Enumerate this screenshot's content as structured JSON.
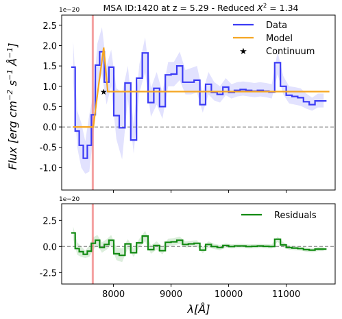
{
  "chart_data": [
    {
      "type": "line",
      "title": "MSA ID:1420 at z = 5.29 - Reduced X² = 1.34",
      "title_parts": {
        "main": "MSA ID:1420 at z = 5.29 - Reduced ",
        "chi": "X",
        "sup": "2",
        "tail": " = 1.34"
      },
      "offset_text": "1e−20",
      "ylabel": "Flux [erg cm⁻² s⁻¹ Å⁻¹]",
      "ylabel_parts": {
        "a": "Flux [",
        "b": "erg cm",
        "c": "−2",
        "d": " s",
        "e": "−1",
        "f": " Å",
        "g": "−1",
        "h": "]"
      },
      "xlabel": "",
      "xlim": [
        7100,
        11850
      ],
      "ylim": [
        -1.55,
        2.75
      ],
      "y_ticks": [
        "-1.0",
        "-0.5",
        "0.0",
        "0.5",
        "1.0",
        "1.5",
        "2.0",
        "2.5"
      ],
      "y_tick_values": [
        -1.0,
        -0.5,
        0.0,
        0.5,
        1.0,
        1.5,
        2.0,
        2.5
      ],
      "grid": false,
      "legend_position": "top-right",
      "legend": [
        "Data",
        "Model",
        "Continuum"
      ],
      "zero_line": 0.0,
      "vertical_line_x": 7640,
      "series": [
        {
          "name": "Data",
          "color": "#3b3bf5",
          "x": [
            7300,
            7370,
            7440,
            7510,
            7580,
            7650,
            7720,
            7800,
            7880,
            7960,
            8050,
            8150,
            8250,
            8350,
            8450,
            8550,
            8650,
            8750,
            8850,
            8950,
            9050,
            9150,
            9250,
            9350,
            9450,
            9550,
            9650,
            9750,
            9850,
            9950,
            10050,
            10150,
            10250,
            10350,
            10450,
            10550,
            10650,
            10750,
            10850,
            10950,
            11050,
            11150,
            11250,
            11350,
            11450,
            11550,
            11650
          ],
          "y": [
            1.47,
            -0.1,
            -0.45,
            -0.77,
            -0.45,
            0.3,
            1.52,
            1.85,
            1.1,
            1.47,
            0.28,
            -0.02,
            1.08,
            -0.32,
            1.2,
            1.82,
            0.6,
            0.95,
            0.5,
            1.28,
            1.3,
            1.5,
            1.1,
            1.1,
            1.15,
            0.55,
            1.05,
            0.85,
            0.8,
            0.98,
            0.85,
            0.9,
            0.92,
            0.9,
            0.88,
            0.9,
            0.88,
            0.86,
            1.58,
            1.0,
            0.78,
            0.75,
            0.72,
            0.62,
            0.55,
            0.64,
            0.64
          ],
          "err_lower": [
            1.1,
            -0.5,
            -1.0,
            -1.15,
            -1.1,
            -0.2,
            1.0,
            1.3,
            0.55,
            1.0,
            -0.3,
            -0.8,
            0.7,
            -0.65,
            0.85,
            1.35,
            0.25,
            0.55,
            0.2,
            1.0,
            1.0,
            1.15,
            0.8,
            0.8,
            0.85,
            0.35,
            0.8,
            0.65,
            0.6,
            0.78,
            0.7,
            0.75,
            0.77,
            0.75,
            0.73,
            0.75,
            0.73,
            0.7,
            1.3,
            0.8,
            0.58,
            0.55,
            0.52,
            0.45,
            0.4,
            0.48,
            0.48
          ],
          "err_upper": [
            2.1,
            0.4,
            0.1,
            -0.35,
            0.3,
            0.8,
            2.05,
            2.45,
            1.5,
            1.9,
            0.95,
            0.85,
            1.5,
            0.05,
            1.55,
            2.2,
            0.95,
            1.35,
            0.85,
            1.6,
            1.6,
            1.85,
            1.4,
            1.45,
            1.5,
            0.85,
            1.35,
            1.1,
            1.0,
            1.2,
            1.05,
            1.1,
            1.12,
            1.1,
            1.08,
            1.1,
            1.08,
            1.05,
            1.85,
            1.25,
            1.0,
            0.98,
            0.95,
            0.82,
            0.72,
            0.82,
            0.82
          ]
        },
        {
          "name": "Model",
          "color": "#f5a623",
          "x": [
            7300,
            7650,
            7730,
            7830,
            7900,
            11750
          ],
          "y": [
            0.0,
            0.0,
            0.9,
            1.95,
            0.87,
            0.87
          ]
        },
        {
          "name": "Continuum",
          "type": "scatter",
          "marker": "star",
          "x": [
            7830
          ],
          "y": [
            0.87
          ]
        }
      ]
    },
    {
      "type": "line",
      "offset_text": "1e−20",
      "xlabel": "λ[Å]",
      "xlabel_parts": {
        "a": "λ[",
        "b": "Å",
        "c": "]"
      },
      "xlim": [
        7100,
        11850
      ],
      "ylim": [
        -3.6,
        4.1
      ],
      "x_ticks": [
        "8000",
        "9000",
        "10000",
        "11000"
      ],
      "x_tick_values": [
        8000,
        9000,
        10000,
        11000
      ],
      "y_ticks": [
        "-2.5",
        "0.0",
        "2.5"
      ],
      "y_tick_values": [
        -2.5,
        0.0,
        2.5
      ],
      "grid": false,
      "legend_position": "top-right",
      "legend": [
        "Residuals"
      ],
      "zero_line": 0.0,
      "vertical_line_x": 7640,
      "series": [
        {
          "name": "Residuals",
          "color": "#128a12",
          "x": [
            7300,
            7370,
            7440,
            7510,
            7580,
            7650,
            7720,
            7800,
            7880,
            7960,
            8050,
            8150,
            8250,
            8350,
            8450,
            8550,
            8650,
            8750,
            8850,
            8950,
            9050,
            9150,
            9250,
            9350,
            9450,
            9550,
            9650,
            9750,
            9850,
            9950,
            10050,
            10150,
            10250,
            10350,
            10450,
            10550,
            10650,
            10750,
            10850,
            10950,
            11050,
            11150,
            11250,
            11350,
            11450,
            11550,
            11650
          ],
          "y": [
            1.3,
            -0.2,
            -0.5,
            -0.75,
            -0.45,
            0.3,
            0.6,
            -0.1,
            0.2,
            0.6,
            -0.7,
            -0.85,
            0.25,
            -0.6,
            0.35,
            1.0,
            -0.3,
            0.1,
            -0.4,
            0.4,
            0.45,
            0.6,
            0.2,
            0.25,
            0.3,
            -0.35,
            0.2,
            0.0,
            -0.1,
            0.1,
            0.0,
            0.05,
            0.05,
            0.0,
            0.02,
            0.05,
            0.02,
            0.0,
            0.7,
            0.15,
            -0.1,
            -0.15,
            -0.2,
            -0.3,
            -0.35,
            -0.25,
            -0.25
          ],
          "err_lower": [
            0.7,
            -0.8,
            -1.0,
            -1.1,
            -1.0,
            -0.3,
            0.1,
            -0.6,
            -0.3,
            0.1,
            -1.3,
            -1.5,
            -0.2,
            -1.0,
            -0.05,
            0.5,
            -0.7,
            -0.3,
            -0.75,
            0.05,
            0.1,
            0.25,
            -0.1,
            -0.05,
            0.0,
            -0.65,
            -0.1,
            -0.25,
            -0.35,
            -0.1,
            -0.2,
            -0.15,
            -0.15,
            -0.2,
            -0.18,
            -0.15,
            -0.18,
            -0.2,
            0.45,
            -0.1,
            -0.3,
            -0.35,
            -0.4,
            -0.5,
            -0.55,
            -0.45,
            -0.45
          ],
          "err_upper": [
            1.9,
            0.4,
            0.0,
            -0.4,
            0.1,
            0.9,
            1.1,
            0.4,
            0.7,
            1.1,
            -0.1,
            -0.2,
            0.7,
            -0.2,
            0.75,
            1.5,
            0.1,
            0.5,
            -0.05,
            0.75,
            0.8,
            0.95,
            0.5,
            0.55,
            0.6,
            -0.05,
            0.5,
            0.25,
            0.15,
            0.3,
            0.2,
            0.25,
            0.25,
            0.2,
            0.22,
            0.25,
            0.22,
            0.2,
            0.95,
            0.4,
            0.1,
            0.05,
            0.0,
            -0.1,
            -0.15,
            -0.05,
            -0.05
          ]
        }
      ]
    }
  ]
}
